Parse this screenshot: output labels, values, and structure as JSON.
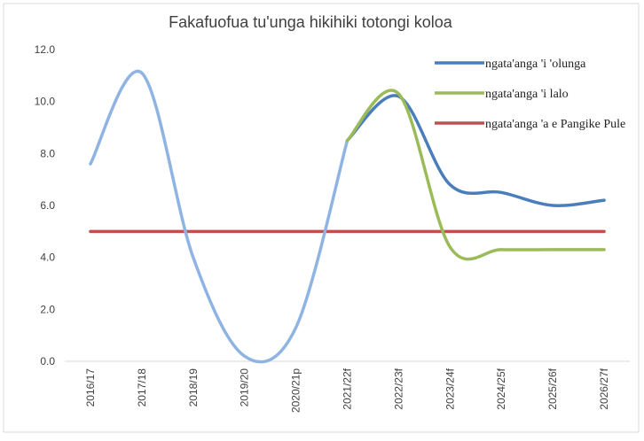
{
  "chart_data": {
    "type": "line",
    "title": "Fakafuofua tu'unga hikihiki totongi koloa",
    "categories": [
      "2016/17",
      "2017/18",
      "2018/19",
      "2019/20",
      "2020/21p",
      "2021/22f",
      "2022/23f",
      "2023/24f",
      "2024/25f",
      "2025/26f",
      "2026/27f"
    ],
    "series": [
      {
        "color": "#8fb4e3",
        "values": [
          7.6,
          11.1,
          4.0,
          0.2,
          1.3,
          8.5,
          null,
          null,
          null,
          null,
          null
        ]
      },
      {
        "name": "ngata'anga 'i 'olunga",
        "color": "#4a7ebb",
        "values": [
          null,
          null,
          null,
          null,
          null,
          8.5,
          10.2,
          6.8,
          6.5,
          6.0,
          6.2
        ]
      },
      {
        "name": "ngata'anga 'i lalo",
        "color": "#9bbb59",
        "values": [
          null,
          null,
          null,
          null,
          null,
          8.5,
          10.3,
          4.4,
          4.3,
          4.3,
          4.3
        ]
      },
      {
        "name": "ngata'anga 'a e Pangike Pule",
        "color": "#c0504d",
        "values": [
          5.0,
          5.0,
          5.0,
          5.0,
          5.0,
          5.0,
          5.0,
          5.0,
          5.0,
          5.0,
          5.0
        ]
      }
    ],
    "ylim": [
      0,
      12
    ],
    "yticks": [
      {
        "value": 0,
        "label": "0.0"
      },
      {
        "value": 2,
        "label": "2.0"
      },
      {
        "value": 4,
        "label": "4.0"
      },
      {
        "value": 6,
        "label": "6.0"
      },
      {
        "value": 8,
        "label": "8.0"
      },
      {
        "value": 10,
        "label": "10.0"
      },
      {
        "value": 12,
        "label": "12.0"
      }
    ],
    "grid": false
  }
}
